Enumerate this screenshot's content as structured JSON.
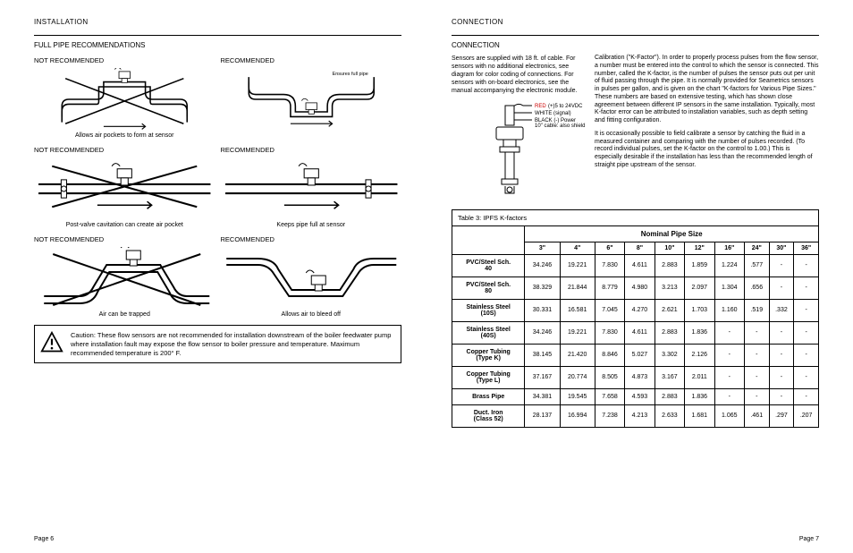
{
  "left": {
    "header": "INSTALLATION",
    "subheader": "FULL PIPE RECOMMENDATIONS",
    "pairs": [
      {
        "not_rec_title": "NOT RECOMMENDED",
        "rec_title": "RECOMMENDED",
        "not_caption": "Allows air pockets to form at sensor",
        "rec_caption": "Ensures full pipe"
      },
      {
        "not_rec_title": "NOT RECOMMENDED",
        "rec_title": "RECOMMENDED",
        "not_caption": "Post-valve cavitation can create air pocket",
        "rec_caption": "Keeps pipe full at sensor"
      },
      {
        "not_rec_title": "NOT RECOMMENDED",
        "rec_title": "RECOMMENDED",
        "not_caption": "Air can be trapped",
        "rec_caption": "Allows air to bleed off"
      }
    ],
    "caution": "Caution: These flow sensors are not recommended for installation downstream of the boiler feedwater pump where installation fault may expose the flow sensor to boiler pressure and temperature. Maximum recommended temperature is 200° F.",
    "page_num": "Page 6"
  },
  "right": {
    "header": "CONNECTION",
    "subheader": "CONNECTION",
    "intro": "Sensors are supplied with 18 ft. of cable. For sensors with no additional electronics, see diagram for color coding of connections. For sensors with on-board electronics, see the manual accompanying the electronic module.",
    "diagram_labels": {
      "red": "RED (+) 5 to 24 VDC",
      "white": "WHITE (signal)",
      "black": "BLACK (-) Power 10\" cable: also shield"
    },
    "para1": "Calibration (\"K-Factor\"). In order to properly process pulses from the flow sensor, a number must be entered into the control to which the sensor is connected. This number, called the K-factor, is the number of pulses the sensor puts out per unit of fluid passing through the pipe. It is normally provided for Seametrics sensors in pulses per gallon, and is given on the chart \"K-factors for Various Pipe Sizes.\" These numbers are based on extensive testing, which has shown close agreement between different IP sensors in the same installation. Typically, most K-factor error can be attributed to installation variables, such as depth setting and fitting configuration.",
    "para2": "It is occasionally possible to field calibrate a sensor by catching the fluid in a measured container and comparing with the number of pulses recorded. (To record individual pulses, set the K-factor on the control to 1.00.) This is especially desirable if the installation has less than the recommended length of straight pipe upstream of the sensor.",
    "table": {
      "title": "Table 3: IPFS K-factors",
      "nps": "Nominal Pipe Size",
      "cols": [
        "3\"",
        "4\"",
        "6\"",
        "8\"",
        "10\"",
        "12\"",
        "16\"",
        "24\"",
        "30\"",
        "36\""
      ],
      "rows": [
        {
          "label": "PVC/Steel Sch. 40",
          "vals": [
            "34.246",
            "19.221",
            "7.830",
            "4.611",
            "2.883",
            "1.859",
            "1.224",
            ".577",
            "-",
            "-"
          ]
        },
        {
          "label": "PVC/Steel Sch. 80",
          "vals": [
            "38.329",
            "21.844",
            "8.779",
            "4.980",
            "3.213",
            "2.097",
            "1.304",
            ".656",
            "-",
            "-"
          ]
        },
        {
          "label": "Stainless Steel (10S)",
          "vals": [
            "30.331",
            "16.581",
            "7.045",
            "4.270",
            "2.621",
            "1.703",
            "1.160",
            ".519",
            ".332",
            "-"
          ]
        },
        {
          "label": "Stainless Steel (40S)",
          "vals": [
            "34.246",
            "19.221",
            "7.830",
            "4.611",
            "2.883",
            "1.836",
            "-",
            "-",
            "-",
            "-"
          ]
        },
        {
          "label": "Copper Tubing (Type K)",
          "vals": [
            "38.145",
            "21.420",
            "8.846",
            "5.027",
            "3.302",
            "2.126",
            "-",
            "-",
            "-",
            "-"
          ]
        },
        {
          "label": "Copper Tubing (Type L)",
          "vals": [
            "37.167",
            "20.774",
            "8.505",
            "4.873",
            "3.167",
            "2.011",
            "-",
            "-",
            "-",
            "-"
          ]
        },
        {
          "label": "Brass Pipe",
          "vals": [
            "34.381",
            "19.545",
            "7.658",
            "4.593",
            "2.883",
            "1.836",
            "-",
            "-",
            "-",
            "-"
          ]
        },
        {
          "label": "Duct. Iron (Class 52)",
          "vals": [
            "28.137",
            "16.994",
            "7.238",
            "4.213",
            "2.633",
            "1.681",
            "1.065",
            ".461",
            ".297",
            ".207"
          ]
        }
      ]
    },
    "page_num": "Page 7"
  },
  "style": {
    "bg": "#ffffff",
    "text": "#000000",
    "border": "#000000",
    "font_size_body": 8,
    "font_size_table": 7,
    "font_size_caption": 7
  }
}
